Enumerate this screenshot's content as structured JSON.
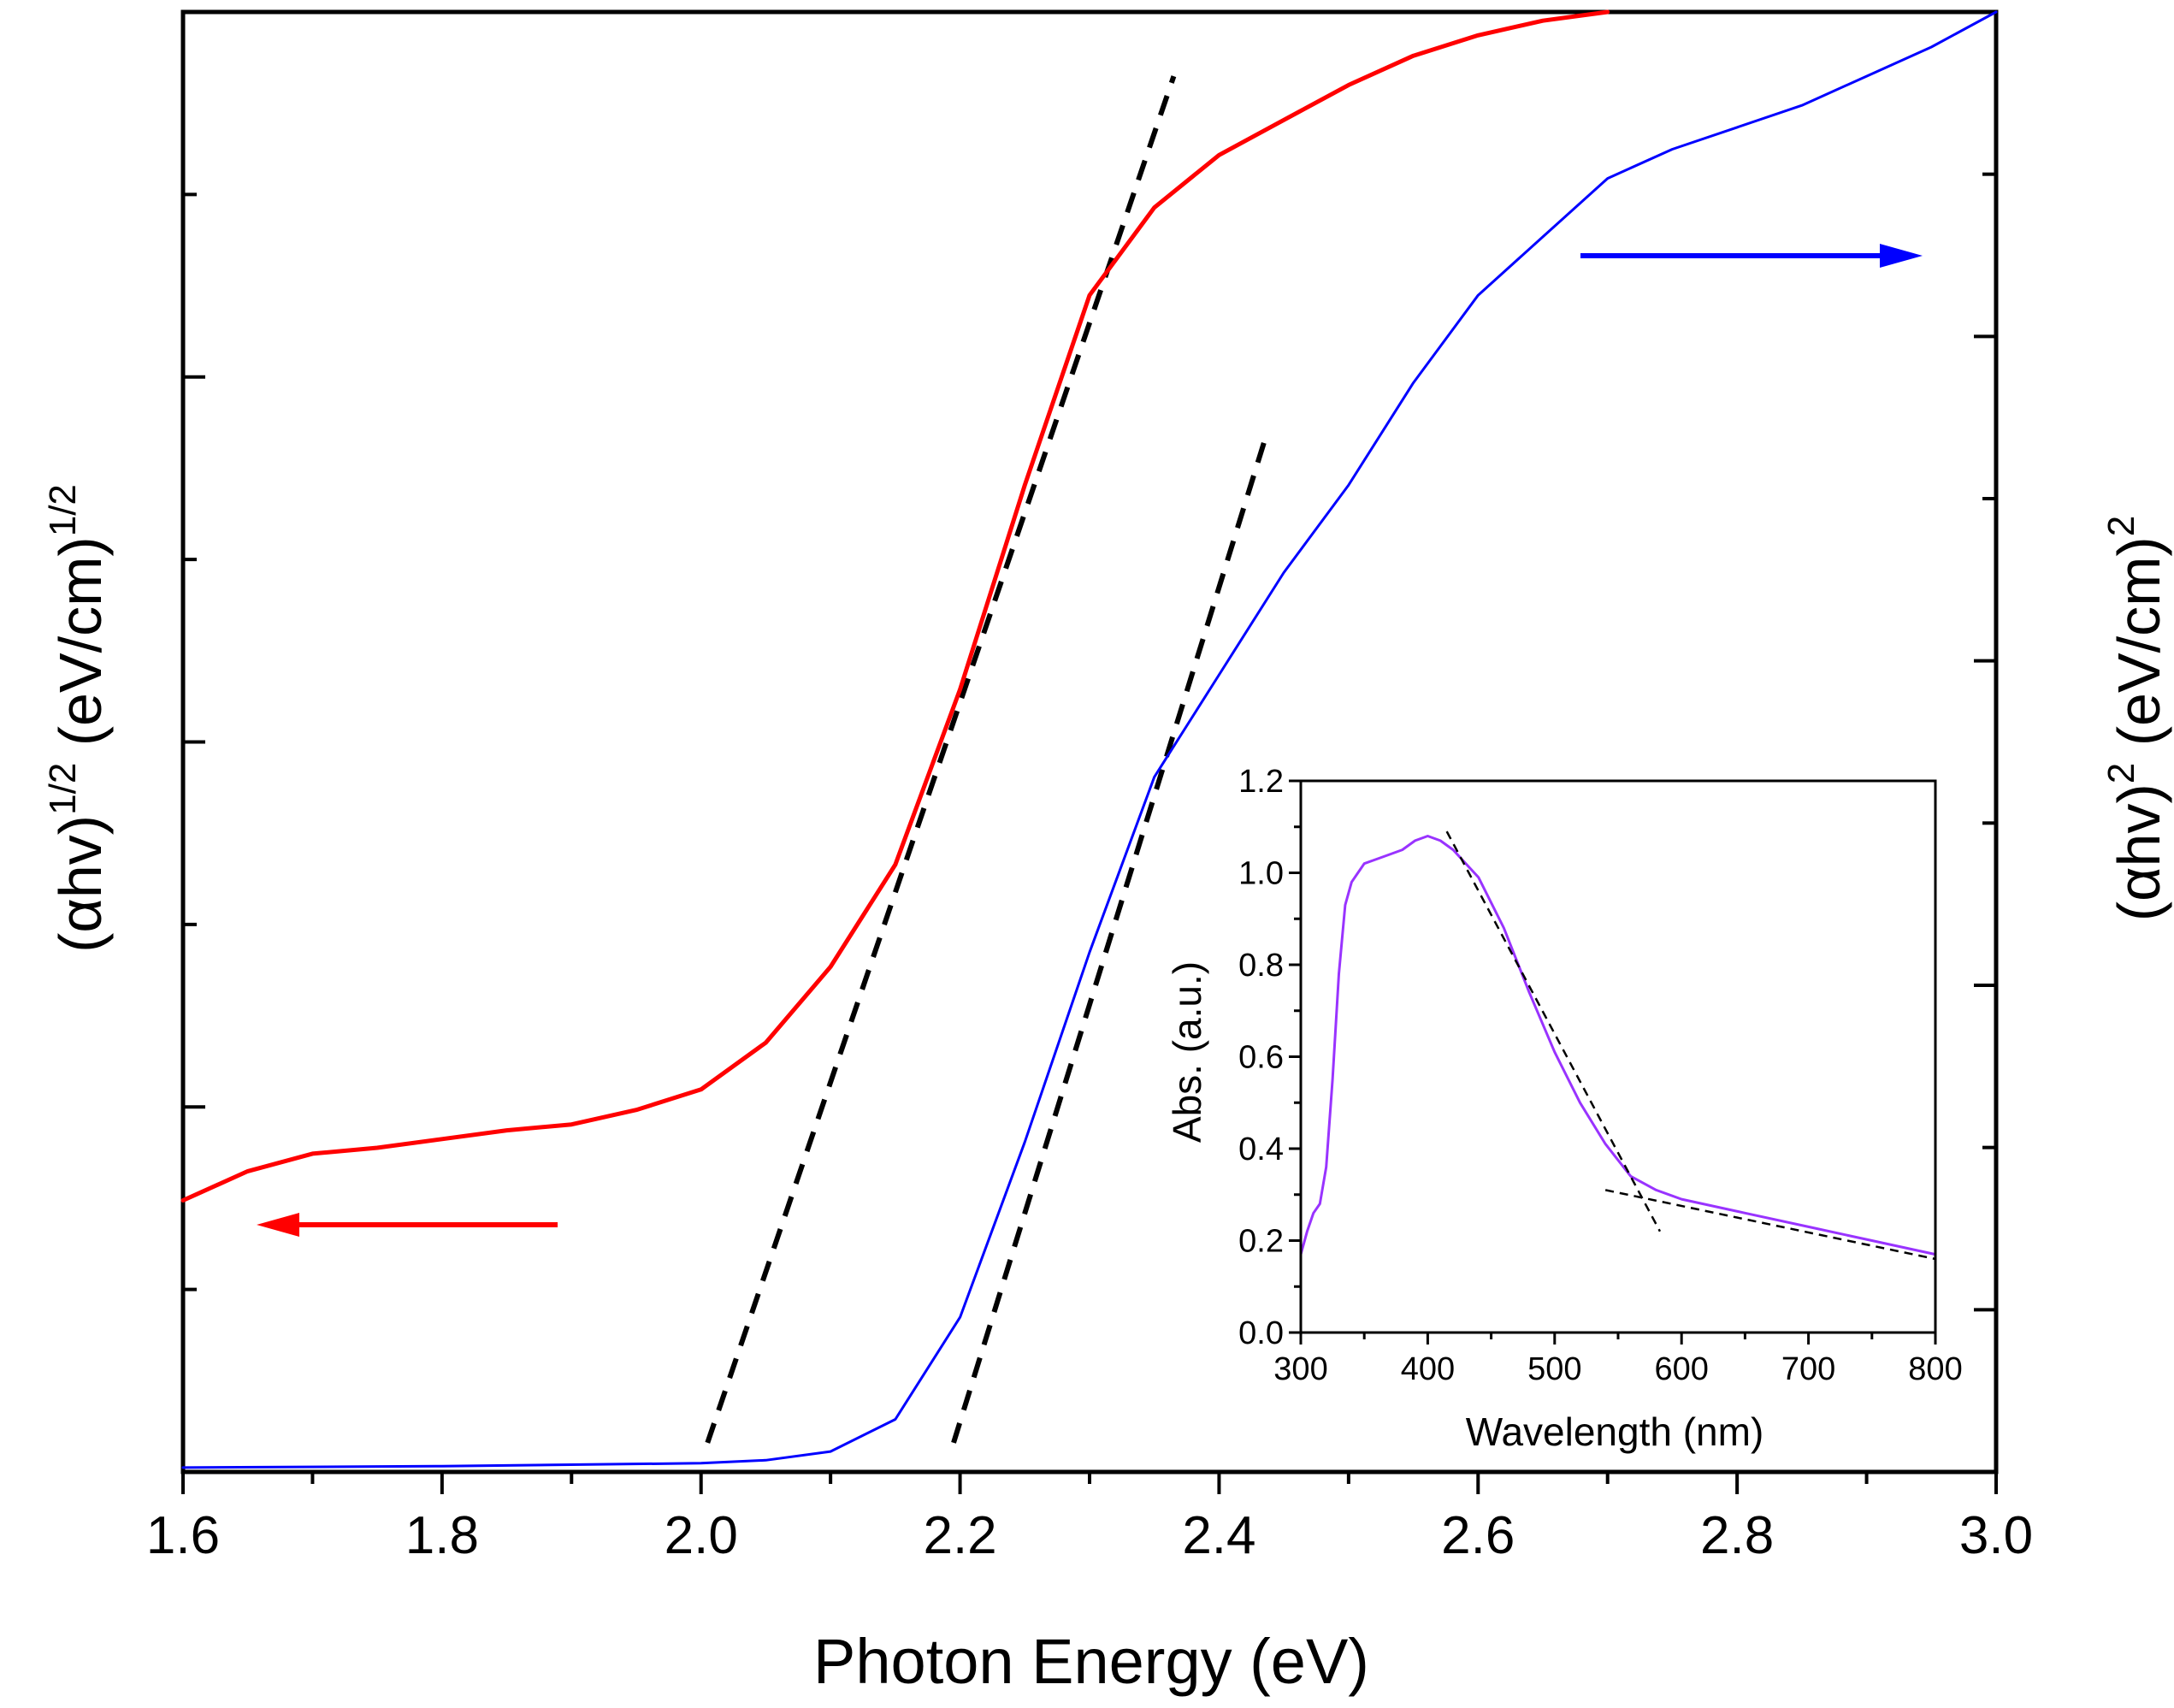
{
  "chart_data": [
    {
      "type": "line",
      "title": "",
      "xlabel": "Photon Energy (eV)",
      "ylabel_left": {
        "base": "(αhv)",
        "sup1": "1/2",
        "rest": " (eV/cm)",
        "sup2": "1/2"
      },
      "ylabel_right": {
        "base": "(αhv)",
        "sup1": "2",
        "rest": " (eV/cm)",
        "sup2": "2"
      },
      "xlim": [
        1.6,
        3.0
      ],
      "xticks": [
        "1.6",
        "1.8",
        "2.0",
        "2.2",
        "2.4",
        "2.6",
        "2.8",
        "3.0"
      ],
      "left_ylim": [
        0,
        1
      ],
      "right_ylim": [
        0,
        1
      ],
      "y_tick_labels": "none",
      "grid": false,
      "series": [
        {
          "axis": "left",
          "color": "#ff0000",
          "x": [
            1.6,
            1.65,
            1.7,
            1.75,
            1.8,
            1.85,
            1.9,
            1.95,
            2.0,
            2.05,
            2.1,
            2.15,
            2.2,
            2.25,
            2.3,
            2.35,
            2.4,
            2.45,
            2.5,
            2.55,
            2.6,
            2.65,
            2.7
          ],
          "y": [
            0.186,
            0.206,
            0.218,
            0.222,
            0.228,
            0.234,
            0.238,
            0.248,
            0.262,
            0.294,
            0.346,
            0.416,
            0.536,
            0.676,
            0.806,
            0.866,
            0.902,
            0.926,
            0.95,
            0.97,
            0.984,
            0.994,
            1.0
          ]
        },
        {
          "axis": "right",
          "color": "#0000ff",
          "x": [
            1.6,
            1.8,
            2.0,
            2.05,
            2.1,
            2.15,
            2.2,
            2.25,
            2.3,
            2.35,
            2.4,
            2.45,
            2.5,
            2.55,
            2.6,
            2.65,
            2.7,
            2.75,
            2.8,
            2.85,
            2.9,
            2.95,
            3.0
          ],
          "y": [
            0.003,
            0.004,
            0.006,
            0.008,
            0.014,
            0.036,
            0.106,
            0.226,
            0.356,
            0.476,
            0.546,
            0.616,
            0.676,
            0.746,
            0.806,
            0.846,
            0.886,
            0.906,
            0.921,
            0.936,
            0.956,
            0.976,
            1.0
          ]
        }
      ],
      "fit_lines": [
        {
          "color": "#000000",
          "x": [
            2.005,
            2.365
          ],
          "y": [
            0.02,
            0.956
          ]
        },
        {
          "color": "#000000",
          "x": [
            2.195,
            2.435
          ],
          "y": [
            0.02,
            0.706
          ]
        }
      ],
      "arrows": [
        {
          "color": "#ff0000",
          "direction": "left",
          "points_to_axis": "left"
        },
        {
          "color": "#0000ff",
          "direction": "right",
          "points_to_axis": "right"
        }
      ]
    },
    {
      "type": "line",
      "title": "",
      "xlabel": "Wavelength (nm)",
      "ylabel": "Abs. (a.u.)",
      "xlim": [
        300,
        800
      ],
      "ylim": [
        0,
        1.2
      ],
      "xticks": [
        "300",
        "400",
        "500",
        "600",
        "700",
        "800"
      ],
      "yticks": [
        "0.0",
        "0.2",
        "0.4",
        "0.6",
        "0.8",
        "1.0",
        "1.2"
      ],
      "grid": false,
      "series": [
        {
          "color": "#9933ff",
          "x": [
            300,
            305,
            310,
            315,
            320,
            325,
            330,
            335,
            340,
            345,
            350,
            360,
            370,
            380,
            390,
            400,
            410,
            420,
            440,
            460,
            480,
            500,
            520,
            540,
            560,
            580,
            600,
            650,
            700,
            750,
            800
          ],
          "y": [
            0.17,
            0.22,
            0.26,
            0.28,
            0.36,
            0.55,
            0.78,
            0.93,
            0.98,
            1.0,
            1.02,
            1.03,
            1.04,
            1.05,
            1.07,
            1.08,
            1.07,
            1.05,
            0.99,
            0.88,
            0.74,
            0.61,
            0.5,
            0.41,
            0.34,
            0.31,
            0.29,
            0.26,
            0.23,
            0.2,
            0.17
          ]
        }
      ],
      "fit_lines": [
        {
          "color": "#000000",
          "x": [
            415,
            583
          ],
          "y": [
            1.09,
            0.22
          ]
        },
        {
          "color": "#000000",
          "x": [
            540,
            800
          ],
          "y": [
            0.31,
            0.16
          ]
        }
      ]
    }
  ]
}
